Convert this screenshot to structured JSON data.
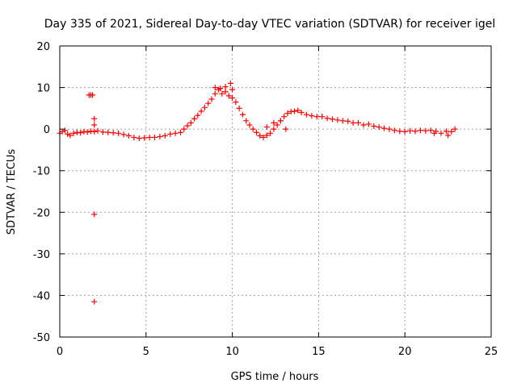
{
  "chart_data": {
    "type": "scatter",
    "title": "Day 335 of 2021, Sidereal Day-to-day VTEC variation (SDTVAR) for receiver igel",
    "xlabel": "GPS time / hours",
    "ylabel": "SDTVAR / TECUs",
    "xlim": [
      0,
      25
    ],
    "ylim": [
      -50,
      20
    ],
    "xticks": [
      0,
      5,
      10,
      15,
      20,
      25
    ],
    "yticks": [
      -50,
      -40,
      -30,
      -20,
      -10,
      0,
      10,
      20
    ],
    "grid": true,
    "marker": "+",
    "color": "#ff0000",
    "series": [
      {
        "name": "SDTVAR",
        "x": [
          0.0,
          0.15,
          0.3,
          0.45,
          0.6,
          0.8,
          1.0,
          1.2,
          1.4,
          1.6,
          1.8,
          2.0,
          2.2,
          2.5,
          2.8,
          3.1,
          3.4,
          3.7,
          4.0,
          4.3,
          4.6,
          4.9,
          5.2,
          5.5,
          5.8,
          6.1,
          6.4,
          6.7,
          7.0,
          7.2,
          7.4,
          7.6,
          7.8,
          8.0,
          8.2,
          8.4,
          8.6,
          8.8,
          9.0,
          9.2,
          9.4,
          9.6,
          9.8,
          10.0,
          10.2,
          10.4,
          10.6,
          10.8,
          11.0,
          11.2,
          11.4,
          11.6,
          11.8,
          12.0,
          12.2,
          12.4,
          12.6,
          12.8,
          13.0,
          13.2,
          13.4,
          13.6,
          13.8,
          14.0,
          14.3,
          14.6,
          14.9,
          15.2,
          15.5,
          15.8,
          16.1,
          16.4,
          16.7,
          17.0,
          17.3,
          17.6,
          17.9,
          18.2,
          18.5,
          18.8,
          19.1,
          19.4,
          19.7,
          20.0,
          20.3,
          20.6,
          20.9,
          21.2,
          21.5,
          21.8,
          22.1,
          22.4,
          22.7,
          22.9,
          1.7,
          1.8,
          1.9,
          2.0,
          2.0,
          2.0,
          2.0,
          9.0,
          9.3,
          9.6,
          9.9,
          10.0,
          12.0,
          12.4,
          12.8,
          13.1,
          21.7,
          22.5
        ],
        "y": [
          -1.0,
          -0.6,
          -0.3,
          -1.2,
          -1.5,
          -1.0,
          -0.8,
          -0.9,
          -0.6,
          -0.7,
          -0.5,
          -0.6,
          -0.4,
          -0.7,
          -0.8,
          -0.9,
          -1.0,
          -1.3,
          -1.6,
          -2.0,
          -2.2,
          -2.1,
          -2.0,
          -2.0,
          -1.8,
          -1.6,
          -1.2,
          -1.0,
          -0.8,
          0.0,
          0.8,
          1.5,
          2.5,
          3.3,
          4.3,
          5.2,
          6.2,
          7.2,
          8.5,
          9.5,
          8.5,
          9.0,
          8.0,
          7.5,
          6.5,
          5.0,
          3.5,
          2.0,
          1.0,
          0.0,
          -0.8,
          -1.6,
          -2.0,
          -1.5,
          -1.0,
          0.0,
          1.0,
          2.0,
          3.0,
          3.8,
          4.2,
          4.3,
          4.5,
          4.0,
          3.5,
          3.2,
          3.0,
          3.0,
          2.6,
          2.4,
          2.2,
          2.0,
          1.9,
          1.5,
          1.5,
          1.0,
          1.2,
          0.7,
          0.5,
          0.2,
          0.0,
          -0.3,
          -0.5,
          -0.6,
          -0.4,
          -0.5,
          -0.3,
          -0.4,
          -0.3,
          -0.5,
          -1.0,
          -0.5,
          -0.6,
          0.0,
          8.2,
          8.2,
          8.2,
          2.5,
          1.0,
          -20.5,
          -41.5,
          10.0,
          9.8,
          10.2,
          11.0,
          9.5,
          0.5,
          1.5,
          2.0,
          0.0,
          -1.0,
          -1.5
        ]
      }
    ]
  }
}
